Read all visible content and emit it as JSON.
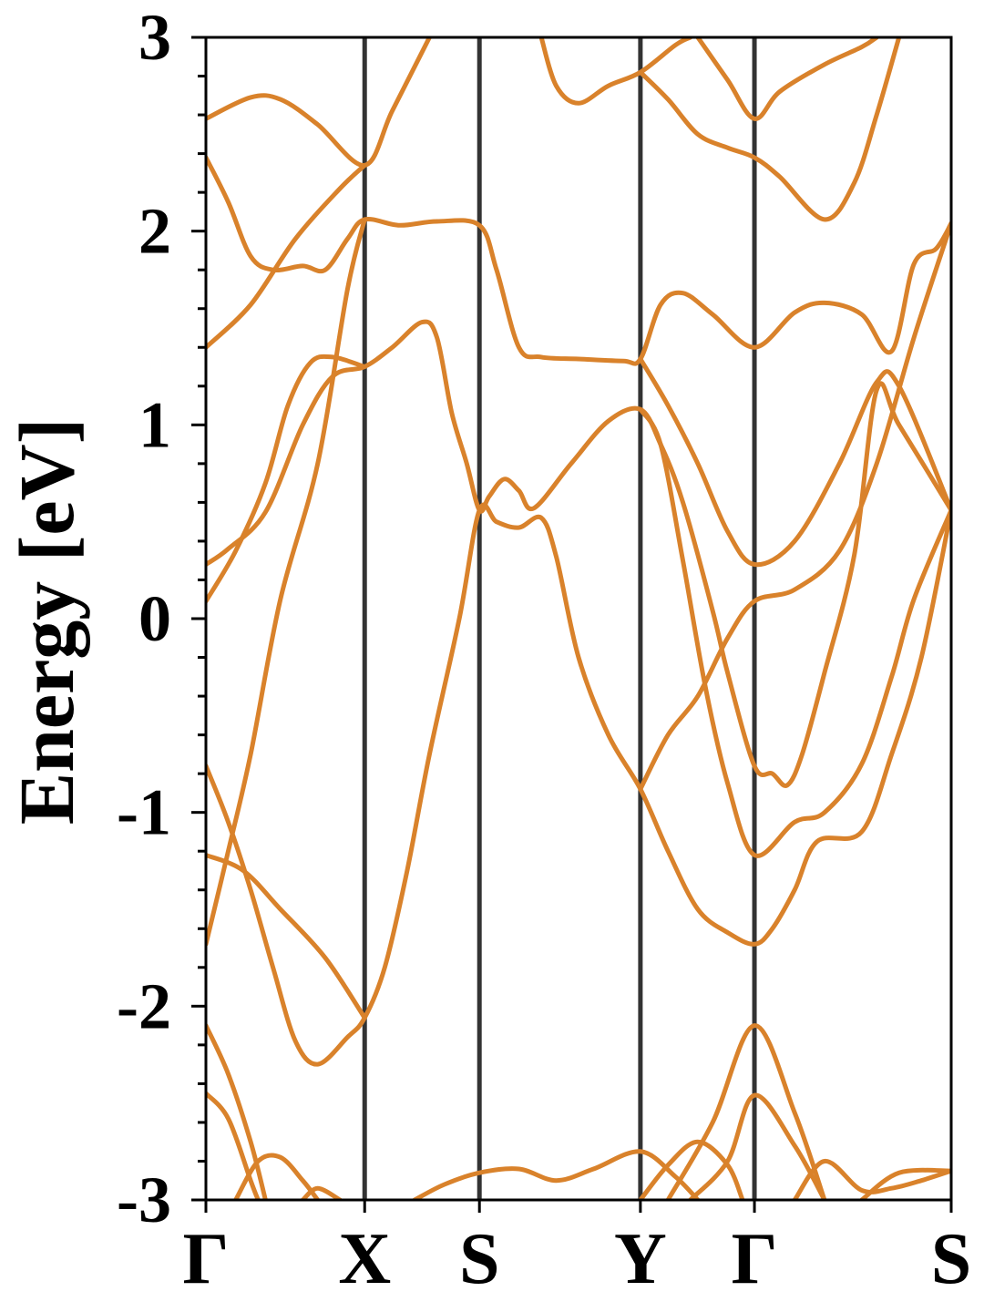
{
  "chart_data": {
    "type": "line",
    "title": "",
    "xlabel": "",
    "ylabel": "Energy [eV]",
    "ylim": [
      -3,
      3
    ],
    "yticks": [
      "3",
      "2",
      "1",
      "0",
      "-1",
      "-2",
      "-3"
    ],
    "ytick_values": [
      3,
      2,
      1,
      0,
      -1,
      -2,
      -3
    ],
    "k_points": [
      {
        "label": "Γ",
        "k": 0.0
      },
      {
        "label": "X",
        "k": 0.213
      },
      {
        "label": "S",
        "k": 0.367
      },
      {
        "label": "Y",
        "k": 0.583
      },
      {
        "label": "Γ",
        "k": 0.736
      },
      {
        "label": "S",
        "k": 1.0
      }
    ],
    "grid": false,
    "legend": "none",
    "colors": {
      "band": "#d9822b",
      "band_highlight": "#f08020",
      "kline": "#333333",
      "axis": "#000000"
    },
    "series": [
      {
        "values": [
          [
            0.0,
            2.58
          ],
          [
            0.06,
            2.69
          ],
          [
            0.1,
            2.68
          ],
          [
            0.15,
            2.55
          ],
          [
            0.213,
            2.34
          ],
          [
            0.25,
            2.62
          ],
          [
            0.3,
            3.0
          ]
        ]
      },
      {
        "values": [
          [
            0.0,
            2.38
          ],
          [
            0.03,
            2.15
          ],
          [
            0.06,
            1.87
          ],
          [
            0.09,
            1.8
          ],
          [
            0.13,
            1.82
          ],
          [
            0.16,
            1.8
          ],
          [
            0.19,
            1.96
          ],
          [
            0.213,
            2.06
          ],
          [
            0.26,
            2.03
          ],
          [
            0.31,
            2.05
          ],
          [
            0.367,
            2.03
          ],
          [
            0.39,
            1.8
          ],
          [
            0.42,
            1.4
          ],
          [
            0.45,
            1.35
          ],
          [
            0.5,
            1.34
          ],
          [
            0.56,
            1.33
          ],
          [
            0.583,
            1.34
          ],
          [
            0.61,
            1.62
          ],
          [
            0.64,
            1.68
          ],
          [
            0.68,
            1.57
          ],
          [
            0.736,
            1.4
          ],
          [
            0.79,
            1.58
          ],
          [
            0.83,
            1.63
          ],
          [
            0.88,
            1.57
          ],
          [
            0.92,
            1.38
          ],
          [
            0.95,
            1.83
          ],
          [
            0.98,
            1.91
          ],
          [
            1.0,
            2.04
          ]
        ]
      },
      {
        "values": [
          [
            0.0,
            1.4
          ],
          [
            0.06,
            1.62
          ],
          [
            0.12,
            1.96
          ],
          [
            0.18,
            2.22
          ],
          [
            0.213,
            2.34
          ]
        ]
      },
      {
        "values": [
          [
            0.0,
            0.28
          ],
          [
            0.03,
            0.36
          ],
          [
            0.08,
            0.55
          ],
          [
            0.13,
            1.0
          ],
          [
            0.17,
            1.25
          ],
          [
            0.213,
            1.3
          ],
          [
            0.25,
            1.4
          ],
          [
            0.29,
            1.53
          ],
          [
            0.31,
            1.45
          ],
          [
            0.33,
            1.06
          ],
          [
            0.35,
            0.8
          ],
          [
            0.367,
            0.56
          ],
          [
            0.38,
            0.63
          ],
          [
            0.4,
            0.72
          ],
          [
            0.42,
            0.66
          ],
          [
            0.44,
            0.57
          ],
          [
            0.49,
            0.8
          ],
          [
            0.54,
            1.02
          ],
          [
            0.583,
            1.08
          ],
          [
            0.61,
            0.9
          ],
          [
            0.64,
            0.6
          ],
          [
            0.68,
            0.04
          ],
          [
            0.7,
            -0.28
          ],
          [
            0.736,
            -0.76
          ],
          [
            0.76,
            -0.8
          ],
          [
            0.78,
            -0.86
          ],
          [
            0.8,
            -0.7
          ],
          [
            0.83,
            -0.28
          ],
          [
            0.87,
            0.33
          ],
          [
            0.9,
            1.18
          ],
          [
            0.93,
            1.0
          ],
          [
            1.0,
            0.56
          ]
        ]
      },
      {
        "values": [
          [
            0.0,
            0.09
          ],
          [
            0.04,
            0.35
          ],
          [
            0.08,
            0.7
          ],
          [
            0.11,
            1.1
          ],
          [
            0.14,
            1.32
          ],
          [
            0.17,
            1.35
          ],
          [
            0.213,
            1.3
          ]
        ]
      },
      {
        "values": [
          [
            0.0,
            -0.76
          ],
          [
            0.03,
            -1.05
          ],
          [
            0.06,
            -1.4
          ],
          [
            0.09,
            -1.8
          ],
          [
            0.12,
            -2.18
          ],
          [
            0.15,
            -2.3
          ],
          [
            0.19,
            -2.16
          ],
          [
            0.213,
            -2.06
          ],
          [
            0.24,
            -1.8
          ],
          [
            0.27,
            -1.3
          ],
          [
            0.3,
            -0.7
          ],
          [
            0.34,
            0.0
          ],
          [
            0.367,
            0.56
          ],
          [
            0.39,
            0.5
          ],
          [
            0.42,
            0.47
          ],
          [
            0.45,
            0.52
          ],
          [
            0.47,
            0.32
          ],
          [
            0.5,
            -0.2
          ],
          [
            0.54,
            -0.6
          ],
          [
            0.583,
            -0.88
          ],
          [
            0.62,
            -1.2
          ],
          [
            0.66,
            -1.5
          ],
          [
            0.7,
            -1.62
          ],
          [
            0.736,
            -1.68
          ],
          [
            0.76,
            -1.6
          ],
          [
            0.79,
            -1.4
          ],
          [
            0.82,
            -1.15
          ],
          [
            0.88,
            -1.1
          ],
          [
            0.92,
            -0.7
          ],
          [
            0.96,
            -0.2
          ],
          [
            1.0,
            0.56
          ]
        ]
      },
      {
        "values": [
          [
            0.0,
            -1.22
          ],
          [
            0.05,
            -1.3
          ],
          [
            0.1,
            -1.5
          ],
          [
            0.16,
            -1.75
          ],
          [
            0.213,
            -2.06
          ]
        ]
      },
      {
        "values": [
          [
            0.0,
            -1.68
          ],
          [
            0.03,
            -1.2
          ],
          [
            0.06,
            -0.7
          ],
          [
            0.1,
            0.1
          ],
          [
            0.15,
            0.8
          ],
          [
            0.19,
            1.7
          ],
          [
            0.213,
            2.06
          ]
        ]
      },
      {
        "values": [
          [
            0.583,
            -0.88
          ],
          [
            0.62,
            -0.6
          ],
          [
            0.66,
            -0.4
          ],
          [
            0.7,
            -0.1
          ],
          [
            0.736,
            0.09
          ],
          [
            0.79,
            0.15
          ],
          [
            0.85,
            0.35
          ],
          [
            0.9,
            0.8
          ],
          [
            0.95,
            1.45
          ],
          [
            1.0,
            2.04
          ]
        ]
      },
      {
        "values": [
          [
            0.583,
            1.08
          ],
          [
            0.61,
            0.9
          ],
          [
            0.64,
            0.3
          ],
          [
            0.67,
            -0.35
          ],
          [
            0.7,
            -0.85
          ],
          [
            0.736,
            -1.22
          ],
          [
            0.79,
            -1.05
          ],
          [
            0.83,
            -1.0
          ],
          [
            0.88,
            -0.75
          ],
          [
            0.92,
            -0.3
          ],
          [
            0.95,
            0.1
          ],
          [
            1.0,
            0.56
          ]
        ]
      },
      {
        "values": [
          [
            0.583,
            1.34
          ],
          [
            0.62,
            1.1
          ],
          [
            0.66,
            0.8
          ],
          [
            0.7,
            0.45
          ],
          [
            0.736,
            0.28
          ],
          [
            0.79,
            0.4
          ],
          [
            0.85,
            0.8
          ],
          [
            0.9,
            1.22
          ],
          [
            0.93,
            1.2
          ],
          [
            1.0,
            0.56
          ]
        ]
      },
      {
        "values": [
          [
            0.583,
            2.82
          ],
          [
            0.62,
            2.68
          ],
          [
            0.66,
            2.5
          ],
          [
            0.7,
            2.43
          ],
          [
            0.736,
            2.38
          ],
          [
            0.77,
            2.28
          ],
          [
            0.83,
            2.06
          ],
          [
            0.87,
            2.25
          ],
          [
            0.9,
            2.6
          ],
          [
            0.93,
            3.0
          ]
        ]
      },
      {
        "values": [
          [
            0.45,
            3.0
          ],
          [
            0.47,
            2.75
          ],
          [
            0.5,
            2.66
          ],
          [
            0.54,
            2.75
          ],
          [
            0.583,
            2.82
          ],
          [
            0.63,
            2.96
          ],
          [
            0.65,
            3.0
          ]
        ]
      },
      {
        "values": [
          [
            0.66,
            3.0
          ],
          [
            0.7,
            2.78
          ],
          [
            0.736,
            2.58
          ],
          [
            0.77,
            2.72
          ],
          [
            0.83,
            2.86
          ],
          [
            0.88,
            2.95
          ],
          [
            0.9,
            3.0
          ]
        ]
      },
      {
        "values": [
          [
            0.0,
            -2.1
          ],
          [
            0.03,
            -2.35
          ],
          [
            0.06,
            -2.7
          ],
          [
            0.08,
            -3.0
          ]
        ]
      },
      {
        "values": [
          [
            0.0,
            -2.45
          ],
          [
            0.03,
            -2.58
          ],
          [
            0.06,
            -2.9
          ],
          [
            0.07,
            -3.0
          ]
        ]
      },
      {
        "values": [
          [
            0.04,
            -3.0
          ],
          [
            0.07,
            -2.8
          ],
          [
            0.1,
            -2.78
          ],
          [
            0.13,
            -2.9
          ],
          [
            0.15,
            -3.0
          ]
        ]
      },
      {
        "values": [
          [
            0.13,
            -3.0
          ],
          [
            0.15,
            -2.94
          ],
          [
            0.18,
            -3.0
          ]
        ]
      },
      {
        "values": [
          [
            0.28,
            -3.0
          ],
          [
            0.32,
            -2.92
          ],
          [
            0.367,
            -2.86
          ],
          [
            0.42,
            -2.84
          ],
          [
            0.47,
            -2.9
          ],
          [
            0.52,
            -2.84
          ],
          [
            0.583,
            -2.75
          ],
          [
            0.63,
            -2.88
          ],
          [
            0.66,
            -3.0
          ]
        ]
      },
      {
        "values": [
          [
            0.583,
            -3.0
          ],
          [
            0.62,
            -2.82
          ],
          [
            0.66,
            -2.7
          ],
          [
            0.7,
            -2.82
          ],
          [
            0.72,
            -3.0
          ]
        ]
      },
      {
        "values": [
          [
            0.62,
            -3.0
          ],
          [
            0.68,
            -2.6
          ],
          [
            0.736,
            -2.1
          ],
          [
            0.79,
            -2.55
          ],
          [
            0.83,
            -3.0
          ]
        ]
      },
      {
        "values": [
          [
            0.65,
            -3.0
          ],
          [
            0.7,
            -2.8
          ],
          [
            0.736,
            -2.46
          ],
          [
            0.79,
            -2.72
          ],
          [
            0.83,
            -3.0
          ]
        ]
      },
      {
        "values": [
          [
            0.79,
            -3.0
          ],
          [
            0.83,
            -2.8
          ],
          [
            0.88,
            -2.95
          ],
          [
            0.92,
            -2.94
          ],
          [
            0.96,
            -2.9
          ],
          [
            1.0,
            -2.85
          ]
        ]
      },
      {
        "values": [
          [
            0.88,
            -3.0
          ],
          [
            0.93,
            -2.86
          ],
          [
            1.0,
            -2.85
          ]
        ]
      }
    ]
  }
}
